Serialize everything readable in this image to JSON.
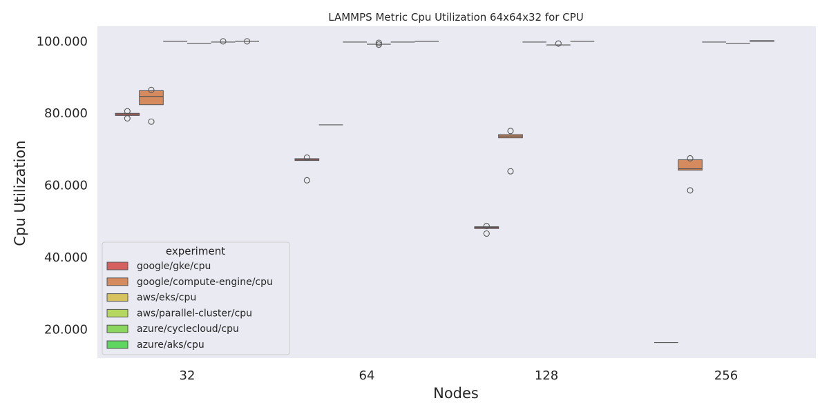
{
  "chart_data": {
    "type": "box",
    "title": "LAMMPS Metric Cpu Utilization 64x64x32 for CPU",
    "xlabel": "Nodes",
    "ylabel": "Cpu Utilization",
    "categories": [
      "32",
      "64",
      "128",
      "256"
    ],
    "y_ticks": [
      "20.000",
      "40.000",
      "60.000",
      "80.000",
      "100.000"
    ],
    "y_tick_values": [
      20,
      40,
      60,
      80,
      100
    ],
    "ylim": [
      12,
      104.2
    ],
    "grid": false,
    "legend": {
      "title": "experiment",
      "placement": "lower-left"
    },
    "series": [
      {
        "name": "google/gke/cpu",
        "color": "#d65f5f",
        "boxes": [
          {
            "category": "32",
            "q1": 79.4,
            "median": 79.8,
            "q3": 80.0,
            "outliers": [
              80.6,
              78.6
            ]
          },
          {
            "category": "64",
            "q1": 66.9,
            "median": 67.2,
            "q3": 67.4,
            "outliers": [
              67.7,
              61.4
            ]
          },
          {
            "category": "128",
            "q1": 48.0,
            "median": 48.3,
            "q3": 48.5,
            "outliers": [
              48.7,
              46.6
            ]
          },
          {
            "category": "256",
            "q1": 16.3,
            "median": 16.3,
            "q3": 16.3,
            "outliers": []
          }
        ]
      },
      {
        "name": "google/compute-engine/cpu",
        "color": "#d68b5f",
        "boxes": [
          {
            "category": "32",
            "q1": 82.4,
            "median": 84.7,
            "q3": 86.3,
            "outliers": [
              86.5,
              77.7
            ]
          },
          {
            "category": "64",
            "q1": 76.8,
            "median": 76.8,
            "q3": 76.8,
            "outliers": []
          },
          {
            "category": "128",
            "q1": 73.2,
            "median": 73.7,
            "q3": 74.1,
            "outliers": [
              75.1,
              63.9
            ]
          },
          {
            "category": "256",
            "q1": 64.2,
            "median": 64.6,
            "q3": 67.1,
            "outliers": [
              67.5,
              58.6
            ]
          }
        ]
      },
      {
        "name": "aws/eks/cpu",
        "color": "#d6c25f",
        "boxes": [
          {
            "category": "32",
            "q1": 100.0,
            "median": 100.0,
            "q3": 100.0,
            "outliers": []
          },
          {
            "category": "64",
            "q1": 99.8,
            "median": 99.8,
            "q3": 99.8,
            "outliers": []
          },
          {
            "category": "128",
            "q1": 99.8,
            "median": 99.8,
            "q3": 99.8,
            "outliers": []
          },
          {
            "category": "256",
            "q1": 99.8,
            "median": 99.8,
            "q3": 99.8,
            "outliers": []
          }
        ]
      },
      {
        "name": "aws/parallel-cluster/cpu",
        "color": "#b5d65f",
        "boxes": [
          {
            "category": "32",
            "q1": 99.4,
            "median": 99.4,
            "q3": 99.4,
            "outliers": []
          },
          {
            "category": "64",
            "q1": 99.2,
            "median": 99.2,
            "q3": 99.2,
            "outliers": [
              99.6,
              99.1
            ]
          },
          {
            "category": "128",
            "q1": 99.0,
            "median": 99.0,
            "q3": 99.0,
            "outliers": [
              99.4
            ]
          },
          {
            "category": "256",
            "q1": 99.4,
            "median": 99.4,
            "q3": 99.4,
            "outliers": []
          }
        ]
      },
      {
        "name": "azure/cyclecloud/cpu",
        "color": "#8bd65f",
        "boxes": [
          {
            "category": "32",
            "q1": 99.8,
            "median": 99.8,
            "q3": 99.8,
            "outliers": [
              100.0
            ]
          },
          {
            "category": "64",
            "q1": 99.8,
            "median": 99.8,
            "q3": 99.8,
            "outliers": []
          },
          {
            "category": "128",
            "q1": 100.0,
            "median": 100.0,
            "q3": 100.0,
            "outliers": []
          },
          {
            "category": "256",
            "q1": 100.0,
            "median": 100.1,
            "q3": 100.2,
            "outliers": []
          }
        ]
      },
      {
        "name": "azure/aks/cpu",
        "color": "#5fd65f",
        "boxes": [
          {
            "category": "32",
            "q1": 100.0,
            "median": 100.0,
            "q3": 100.0,
            "outliers": [
              100.0
            ]
          },
          {
            "category": "64",
            "q1": 100.0,
            "median": 100.0,
            "q3": 100.0,
            "outliers": []
          }
        ]
      }
    ]
  }
}
